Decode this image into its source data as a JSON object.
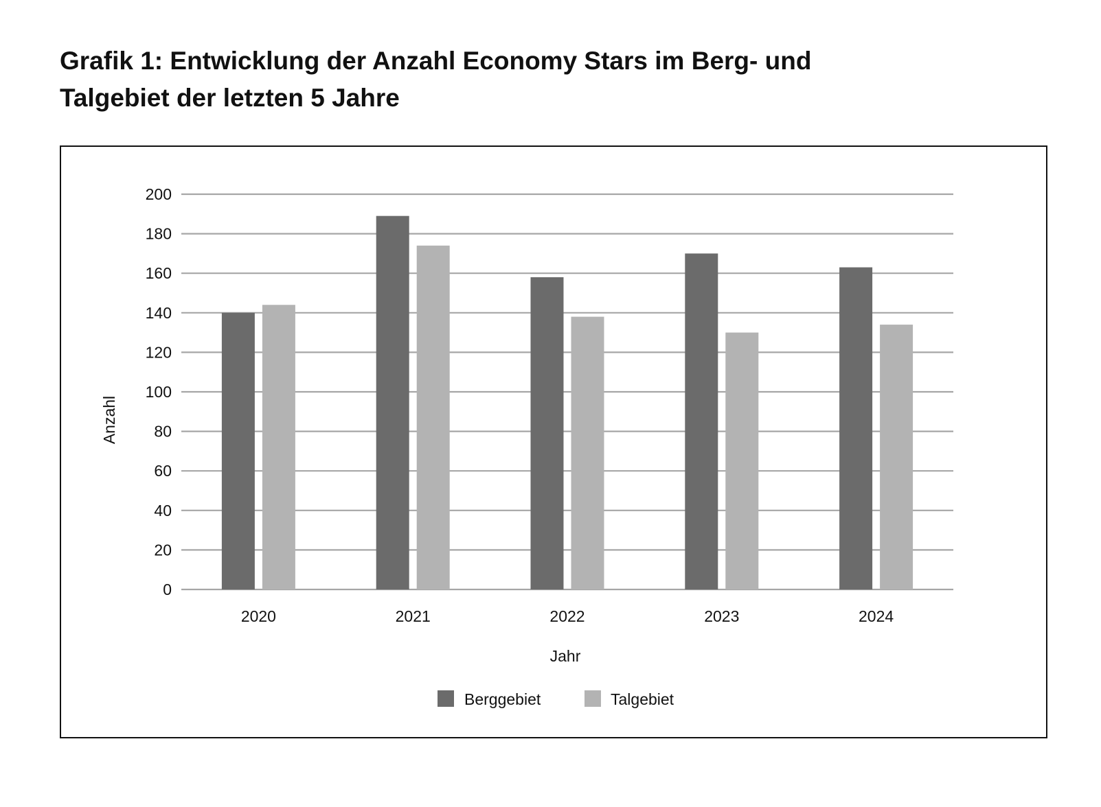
{
  "page": {
    "title_line1": "Grafik 1: Entwicklung der Anzahl Economy Stars im Berg- und",
    "title_line2": "Talgebiet der letzten 5 Jahre"
  },
  "colors": {
    "berggebiet": "#6b6b6b",
    "talgebiet": "#b3b3b3",
    "grid": "#a6a6a6",
    "frame": "#111111"
  },
  "chart_data": {
    "type": "bar",
    "categories": [
      "2020",
      "2021",
      "2022",
      "2023",
      "2024"
    ],
    "series": [
      {
        "name": "Berggebiet",
        "values": [
          140,
          189,
          158,
          170,
          163
        ]
      },
      {
        "name": "Talgebiet",
        "values": [
          144,
          174,
          138,
          130,
          134
        ]
      }
    ],
    "xlabel": "Jahr",
    "ylabel": "Anzahl",
    "ylim": [
      0,
      200
    ],
    "yticks": [
      0,
      20,
      40,
      60,
      80,
      100,
      120,
      140,
      160,
      180,
      200
    ],
    "grid": true,
    "legend_position": "bottom-center"
  }
}
